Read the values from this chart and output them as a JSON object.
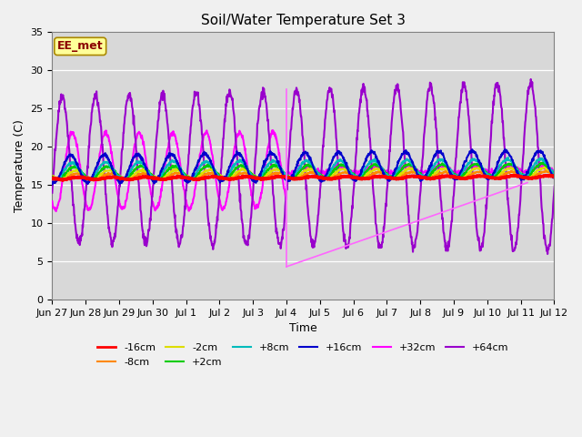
{
  "title": "Soil/Water Temperature Set 3",
  "xlabel": "Time",
  "ylabel": "Temperature (C)",
  "ylim": [
    0,
    35
  ],
  "yticks": [
    0,
    5,
    10,
    15,
    20,
    25,
    30,
    35
  ],
  "bg_color": "#d8d8d8",
  "figsize": [
    6.4,
    4.8
  ],
  "dpi": 100,
  "xtick_labels": [
    "Jun 27",
    "Jun 28",
    "Jun 29",
    "Jun 30",
    "Jul 1",
    "Jul 2",
    "Jul 3",
    "Jul 4",
    "Jul 5",
    "Jul 6",
    "Jul 7",
    "Jul 8",
    "Jul 9",
    "Jul 10",
    "Jul 11",
    "Jul 12"
  ],
  "annotation_label": "EE_met",
  "line_configs": {
    "-16cm": {
      "color": "#ff0000",
      "lw": 2.5,
      "zorder": 5
    },
    "-8cm": {
      "color": "#ff8800",
      "lw": 1.5,
      "zorder": 4
    },
    "-2cm": {
      "color": "#dddd00",
      "lw": 1.5,
      "zorder": 4
    },
    "+2cm": {
      "color": "#00cc00",
      "lw": 1.5,
      "zorder": 4
    },
    "+8cm": {
      "color": "#00bbbb",
      "lw": 1.5,
      "zorder": 4
    },
    "+16cm": {
      "color": "#0000cc",
      "lw": 1.5,
      "zorder": 4
    },
    "+32cm": {
      "color": "#ff00ff",
      "lw": 1.5,
      "zorder": 3
    },
    "+64cm": {
      "color": "#9900cc",
      "lw": 1.5,
      "zorder": 3
    }
  },
  "legend_colors": {
    "-16cm": "#ff0000",
    "-8cm": "#ff8800",
    "-2cm": "#dddd00",
    "+2cm": "#00cc00",
    "+8cm": "#00bbbb",
    "+16cm": "#0000cc",
    "+32cm": "#ff00ff",
    "+64cm": "#9900cc"
  }
}
